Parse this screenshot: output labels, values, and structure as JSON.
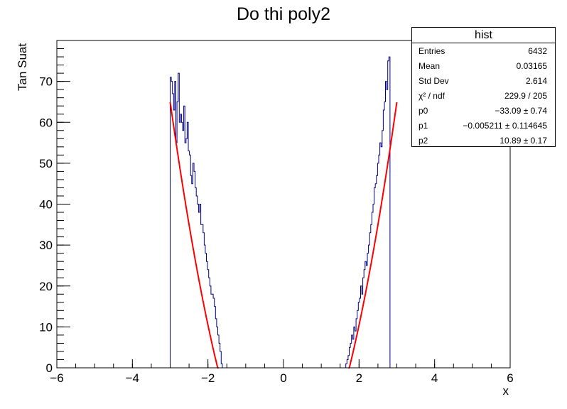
{
  "colors": {
    "histogram": "#000080",
    "fit": "#ff0000",
    "frame": "#000000",
    "background": "#ffffff"
  },
  "chart_data": {
    "type": "bar",
    "title": "Do thi poly2",
    "xlabel": "x",
    "ylabel": "Tan Suat",
    "xlim": [
      -6,
      6
    ],
    "ylim": [
      0,
      80
    ],
    "grid": false,
    "legend": "top-right",
    "xticks": [
      -6,
      -4,
      -2,
      0,
      2,
      4,
      6
    ],
    "xtick_labels": [
      "−6",
      "−4",
      "−2",
      "0",
      "2",
      "4",
      "6"
    ],
    "yticks": [
      0,
      10,
      20,
      30,
      40,
      50,
      60,
      70
    ],
    "ytick_labels": [
      "0",
      "10",
      "20",
      "30",
      "40",
      "50",
      "60",
      "70"
    ],
    "bin_width": 0.03,
    "bins_left": {
      "start": -3.0,
      "values": [
        71,
        70,
        67,
        63,
        70,
        55,
        65,
        72,
        60,
        62,
        60,
        58,
        64,
        55,
        56,
        60,
        53,
        52,
        47,
        45,
        50,
        48,
        44,
        42,
        40,
        38,
        40,
        35,
        35,
        33,
        30,
        28,
        26,
        24,
        22,
        20,
        18,
        18,
        17,
        15,
        12,
        10,
        8,
        6,
        4,
        1
      ]
    },
    "bins_right": {
      "start": 1.65,
      "values": [
        1,
        2,
        3,
        5,
        6,
        8,
        7,
        10,
        9,
        12,
        14,
        16,
        17,
        20,
        18,
        22,
        24,
        26,
        25,
        28,
        30,
        33,
        35,
        38,
        40,
        44,
        45,
        47,
        50,
        52,
        55,
        54,
        58,
        63,
        65,
        70,
        68,
        75,
        76
      ]
    },
    "fit": {
      "function": "pol2",
      "p0": -33.09,
      "p1": -0.005211,
      "p2": 10.89,
      "ranges": [
        [
          -3.0,
          -1.72
        ],
        [
          1.72,
          3.0
        ]
      ]
    },
    "stats_box": {
      "title": "hist",
      "rows": [
        {
          "key": "Entries",
          "value": "6432"
        },
        {
          "key": "Mean",
          "value": "0.03165"
        },
        {
          "key": "Std Dev",
          "value": "2.614"
        },
        {
          "key": "χ² / ndf",
          "value": "229.9 / 205"
        },
        {
          "key": "p0",
          "value": "−33.09 ± 0.74"
        },
        {
          "key": "p1",
          "value": "−0.005211 ± 0.114645"
        },
        {
          "key": "p2",
          "value": "10.89 ± 0.17"
        }
      ]
    }
  }
}
